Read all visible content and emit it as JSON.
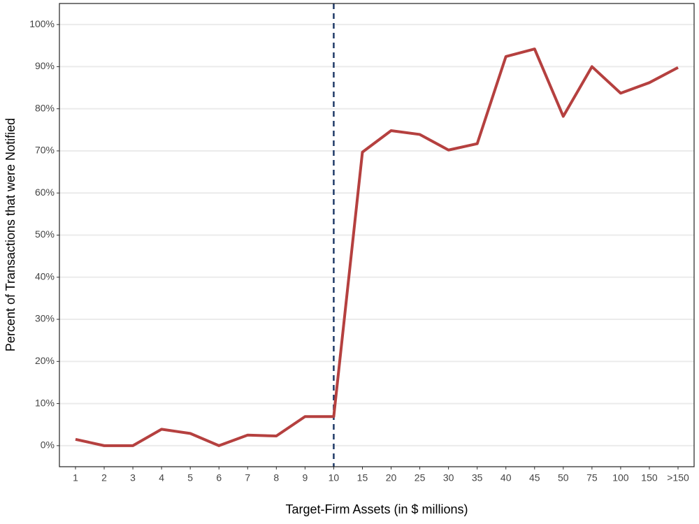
{
  "chart_data": {
    "type": "line",
    "x_label": "Target-Firm Assets (in $ millions)",
    "y_label": "Percent of Transactions that were Notified",
    "categories": [
      "1",
      "2",
      "3",
      "4",
      "5",
      "6",
      "7",
      "8",
      "9",
      "10",
      "15",
      "20",
      "25",
      "30",
      "35",
      "40",
      "45",
      "50",
      "75",
      "100",
      "150",
      ">150"
    ],
    "series": [
      {
        "color": "#b5403f",
        "values": [
          1.5,
          0,
          0,
          3.9,
          2.9,
          0,
          2.5,
          2.3,
          6.9,
          6.9,
          69.7,
          74.8,
          73.9,
          70.2,
          71.7,
          92.4,
          94.2,
          78.2,
          90,
          83.7,
          86.2,
          89.8
        ]
      }
    ],
    "ylim": [
      -5,
      105
    ],
    "yticks": [
      {
        "value": 0,
        "label": "0%"
      },
      {
        "value": 10,
        "label": "10%"
      },
      {
        "value": 20,
        "label": "20%"
      },
      {
        "value": 30,
        "label": "30%"
      },
      {
        "value": 40,
        "label": "40%"
      },
      {
        "value": 50,
        "label": "50%"
      },
      {
        "value": 60,
        "label": "60%"
      },
      {
        "value": 70,
        "label": "70%"
      },
      {
        "value": 80,
        "label": "80%"
      },
      {
        "value": 90,
        "label": "90%"
      },
      {
        "value": 100,
        "label": "100%"
      }
    ],
    "grid": true,
    "vline": {
      "category": "10",
      "color": "#1f3a68",
      "dashed": true
    }
  }
}
